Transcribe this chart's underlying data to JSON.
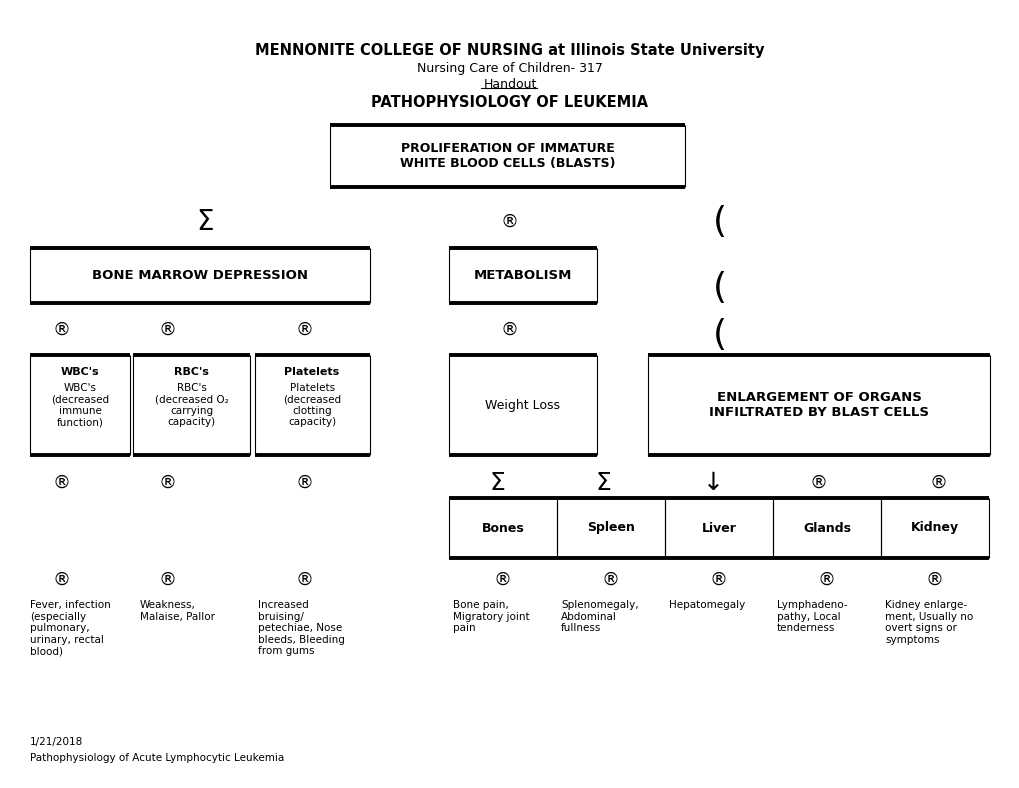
{
  "title_line1": "MENNONITE COLLEGE OF NURSING at Illinois State University",
  "title_line2": "Nursing Care of Children- 317",
  "title_line3": "Handout",
  "title_line4": "PATHOPHYSIOLOGY OF LEUKEMIA",
  "bg_color": "#ffffff",
  "box_color": "#000000",
  "text_color": "#000000",
  "box_fill": "#ffffff",
  "date_text": "1/21/2018",
  "footer_text": "Pathophysiology of Acute Lymphocytic Leukemia",
  "sym_R": "®",
  "sym_sigma": "Σ",
  "sym_down": "↓",
  "sym_paren": "("
}
